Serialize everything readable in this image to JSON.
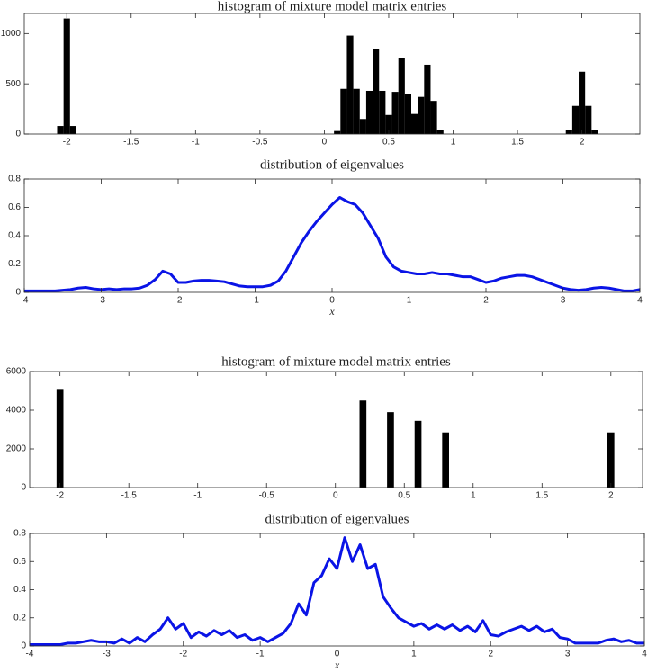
{
  "chart_data": [
    {
      "type": "histogram",
      "title": "histogram of mixture model matrix entries",
      "color": "#000000",
      "bins": [
        -2.125,
        -2.075,
        -2.025,
        -1.975,
        -1.925,
        -1.875,
        -1.825,
        -1.775,
        -1.725,
        -1.675,
        -1.625,
        -1.575,
        -1.525,
        -1.475,
        -1.425,
        -1.375,
        -1.325,
        -1.275,
        -1.225,
        -1.175,
        -1.125,
        -1.075,
        -1.025,
        -0.975,
        -0.925,
        -0.875,
        -0.825,
        -0.775,
        -0.725,
        -0.675,
        -0.625,
        -0.575,
        -0.525,
        -0.475,
        -0.425,
        -0.375,
        -0.325,
        -0.275,
        -0.225,
        -0.175,
        -0.125,
        -0.075,
        -0.025,
        0.025,
        0.075,
        0.125,
        0.175,
        0.225,
        0.275,
        0.325,
        0.375,
        0.425,
        0.475,
        0.525,
        0.575,
        0.625,
        0.675,
        0.725,
        0.775,
        0.825,
        0.875,
        0.925,
        0.975,
        1.025,
        1.075,
        1.125,
        1.175,
        1.225,
        1.275,
        1.325,
        1.375,
        1.425,
        1.475,
        1.525,
        1.575,
        1.625,
        1.675,
        1.725,
        1.775,
        1.825,
        1.875,
        1.925,
        1.975,
        2.025,
        2.075,
        2.125
      ],
      "values": [
        0,
        80,
        1150,
        80,
        0,
        0,
        0,
        0,
        0,
        0,
        0,
        0,
        0,
        0,
        0,
        0,
        0,
        0,
        0,
        0,
        0,
        0,
        0,
        0,
        0,
        0,
        0,
        0,
        0,
        0,
        0,
        0,
        0,
        0,
        0,
        0,
        0,
        0,
        0,
        0,
        0,
        0,
        0,
        0,
        30,
        450,
        980,
        450,
        150,
        430,
        850,
        430,
        190,
        420,
        760,
        400,
        200,
        370,
        690,
        330,
        40,
        0,
        0,
        0,
        0,
        0,
        0,
        0,
        0,
        0,
        0,
        0,
        0,
        0,
        0,
        0,
        0,
        0,
        0,
        0,
        40,
        280,
        620,
        280,
        40
      ],
      "xlim": [
        -2.33,
        2.45
      ],
      "ylim": [
        0,
        1200
      ],
      "xticks": [
        -2,
        -1.5,
        -1,
        -0.5,
        0,
        0.5,
        1,
        1.5,
        2
      ],
      "yticks": [
        0,
        500,
        1000
      ]
    },
    {
      "type": "line",
      "title": "distribution of eigenvalues",
      "xlabel": "x",
      "color": "#0a14e6",
      "x": [
        -4,
        -3.9,
        -3.8,
        -3.7,
        -3.6,
        -3.5,
        -3.4,
        -3.3,
        -3.2,
        -3.1,
        -3,
        -2.9,
        -2.8,
        -2.7,
        -2.6,
        -2.5,
        -2.4,
        -2.3,
        -2.2,
        -2.1,
        -2,
        -1.9,
        -1.8,
        -1.7,
        -1.6,
        -1.5,
        -1.4,
        -1.3,
        -1.2,
        -1.1,
        -1,
        -0.9,
        -0.8,
        -0.7,
        -0.6,
        -0.5,
        -0.4,
        -0.3,
        -0.2,
        -0.1,
        0,
        0.1,
        0.2,
        0.3,
        0.4,
        0.5,
        0.6,
        0.7,
        0.8,
        0.9,
        1,
        1.1,
        1.2,
        1.3,
        1.4,
        1.5,
        1.6,
        1.7,
        1.8,
        1.9,
        2,
        2.1,
        2.2,
        2.3,
        2.4,
        2.5,
        2.6,
        2.7,
        2.8,
        2.9,
        3,
        3.1,
        3.2,
        3.3,
        3.4,
        3.5,
        3.6,
        3.7,
        3.8,
        3.9,
        4
      ],
      "values": [
        0.01,
        0.01,
        0.01,
        0.01,
        0.01,
        0.015,
        0.02,
        0.03,
        0.035,
        0.025,
        0.02,
        0.025,
        0.02,
        0.025,
        0.025,
        0.03,
        0.05,
        0.09,
        0.15,
        0.13,
        0.07,
        0.07,
        0.08,
        0.085,
        0.085,
        0.08,
        0.075,
        0.06,
        0.045,
        0.04,
        0.04,
        0.04,
        0.05,
        0.08,
        0.15,
        0.25,
        0.35,
        0.43,
        0.5,
        0.56,
        0.62,
        0.67,
        0.64,
        0.62,
        0.56,
        0.47,
        0.38,
        0.25,
        0.18,
        0.15,
        0.14,
        0.13,
        0.13,
        0.14,
        0.13,
        0.13,
        0.12,
        0.11,
        0.11,
        0.09,
        0.07,
        0.08,
        0.1,
        0.11,
        0.12,
        0.12,
        0.11,
        0.09,
        0.07,
        0.05,
        0.03,
        0.02,
        0.015,
        0.02,
        0.03,
        0.035,
        0.03,
        0.02,
        0.01,
        0.01,
        0.02
      ],
      "xlim": [
        -4,
        4
      ],
      "ylim": [
        0,
        0.8
      ],
      "xticks": [
        -4,
        -3,
        -2,
        -1,
        0,
        1,
        2,
        3,
        4
      ],
      "yticks": [
        0,
        0.2,
        0.4,
        0.6,
        0.8
      ]
    },
    {
      "type": "histogram",
      "title": "histogram of mixture model matrix entries",
      "color": "#000000",
      "bins": [
        -2.125,
        -2.075,
        -2.025,
        -1.975,
        -1.925,
        -1.875,
        -1.825,
        -1.775,
        -1.725,
        -1.675,
        -1.625,
        -1.575,
        -1.525,
        -1.475,
        -1.425,
        -1.375,
        -1.325,
        -1.275,
        -1.225,
        -1.175,
        -1.125,
        -1.075,
        -1.025,
        -0.975,
        -0.925,
        -0.875,
        -0.825,
        -0.775,
        -0.725,
        -0.675,
        -0.625,
        -0.575,
        -0.525,
        -0.475,
        -0.425,
        -0.375,
        -0.325,
        -0.275,
        -0.225,
        -0.175,
        -0.125,
        -0.075,
        -0.025,
        0.025,
        0.075,
        0.125,
        0.175,
        0.225,
        0.275,
        0.325,
        0.375,
        0.425,
        0.475,
        0.525,
        0.575,
        0.625,
        0.675,
        0.725,
        0.775,
        0.825,
        0.875,
        0.925,
        0.975,
        1.025,
        1.075,
        1.125,
        1.175,
        1.225,
        1.275,
        1.325,
        1.375,
        1.425,
        1.475,
        1.525,
        1.575,
        1.625,
        1.675,
        1.725,
        1.775,
        1.825,
        1.875,
        1.925,
        1.975,
        2.025,
        2.075,
        2.125
      ],
      "values": [
        0,
        0,
        5100,
        0,
        0,
        0,
        0,
        0,
        0,
        0,
        0,
        0,
        0,
        0,
        0,
        0,
        0,
        0,
        0,
        0,
        0,
        0,
        0,
        0,
        0,
        0,
        0,
        0,
        0,
        0,
        0,
        0,
        0,
        0,
        0,
        0,
        0,
        0,
        0,
        0,
        0,
        0,
        0,
        0,
        0,
        0,
        4500,
        0,
        0,
        0,
        3900,
        0,
        0,
        0,
        3450,
        0,
        0,
        0,
        2850,
        0,
        0,
        0,
        0,
        0,
        0,
        0,
        0,
        0,
        0,
        0,
        0,
        0,
        0,
        0,
        0,
        0,
        0,
        0,
        0,
        0,
        0,
        0,
        2850,
        0,
        0
      ],
      "xlim": [
        -2.22,
        2.23
      ],
      "ylim": [
        0,
        6000
      ],
      "xticks": [
        -2,
        -1.5,
        -1,
        -0.5,
        0,
        0.5,
        1,
        1.5,
        2
      ],
      "yticks": [
        0,
        2000,
        4000,
        6000
      ]
    },
    {
      "type": "line",
      "title": "distribution of eigenvalues",
      "xlabel": "x",
      "color": "#0a14e6",
      "x": [
        -4,
        -3.9,
        -3.8,
        -3.7,
        -3.6,
        -3.5,
        -3.4,
        -3.3,
        -3.2,
        -3.1,
        -3,
        -2.9,
        -2.8,
        -2.7,
        -2.6,
        -2.5,
        -2.4,
        -2.3,
        -2.2,
        -2.1,
        -2,
        -1.9,
        -1.8,
        -1.7,
        -1.6,
        -1.5,
        -1.4,
        -1.3,
        -1.2,
        -1.1,
        -1,
        -0.9,
        -0.8,
        -0.7,
        -0.6,
        -0.5,
        -0.4,
        -0.3,
        -0.2,
        -0.1,
        0,
        0.1,
        0.2,
        0.3,
        0.4,
        0.5,
        0.6,
        0.7,
        0.8,
        0.9,
        1,
        1.1,
        1.2,
        1.3,
        1.4,
        1.5,
        1.6,
        1.7,
        1.8,
        1.9,
        2,
        2.1,
        2.2,
        2.3,
        2.4,
        2.5,
        2.6,
        2.7,
        2.8,
        2.9,
        3,
        3.1,
        3.2,
        3.3,
        3.4,
        3.5,
        3.6,
        3.7,
        3.8,
        3.9,
        4
      ],
      "values": [
        0.01,
        0.01,
        0.01,
        0.01,
        0.01,
        0.02,
        0.02,
        0.03,
        0.04,
        0.03,
        0.03,
        0.02,
        0.05,
        0.02,
        0.06,
        0.03,
        0.08,
        0.12,
        0.2,
        0.12,
        0.16,
        0.06,
        0.1,
        0.07,
        0.11,
        0.08,
        0.11,
        0.06,
        0.08,
        0.04,
        0.06,
        0.03,
        0.06,
        0.09,
        0.16,
        0.3,
        0.22,
        0.45,
        0.5,
        0.62,
        0.55,
        0.77,
        0.6,
        0.72,
        0.55,
        0.58,
        0.35,
        0.27,
        0.2,
        0.17,
        0.14,
        0.16,
        0.12,
        0.15,
        0.12,
        0.15,
        0.11,
        0.14,
        0.1,
        0.18,
        0.08,
        0.07,
        0.1,
        0.12,
        0.14,
        0.11,
        0.14,
        0.1,
        0.12,
        0.06,
        0.05,
        0.02,
        0.02,
        0.02,
        0.02,
        0.04,
        0.05,
        0.03,
        0.04,
        0.02,
        0.02
      ],
      "xlim": [
        -4,
        4
      ],
      "ylim": [
        0,
        0.8
      ],
      "xticks": [
        -4,
        -3,
        -2,
        -1,
        0,
        1,
        2,
        3,
        4
      ],
      "yticks": [
        0,
        0.2,
        0.4,
        0.6,
        0.8
      ]
    }
  ]
}
